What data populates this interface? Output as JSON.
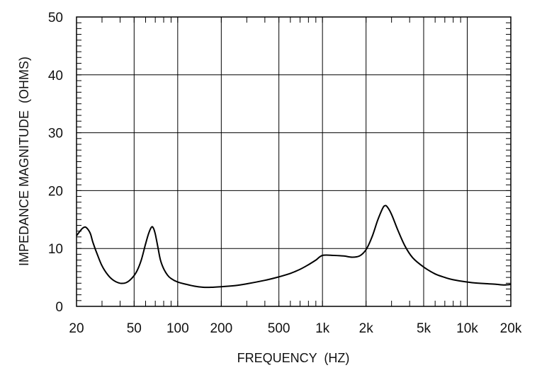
{
  "chart_data": {
    "type": "line",
    "title": "",
    "xlabel": "FREQUENCY  (HZ)",
    "ylabel": "IMPEDANCE MAGNITUDE  (OHMS)",
    "xscale": "log",
    "xlim": [
      20,
      20000
    ],
    "ylim": [
      0,
      50
    ],
    "grid": true,
    "legend": null,
    "x_ticks": [
      20,
      50,
      100,
      200,
      500,
      1000,
      2000,
      5000,
      10000,
      20000
    ],
    "x_tick_labels": [
      "20",
      "50",
      "100",
      "200",
      "500",
      "1k",
      "2k",
      "5k",
      "10k",
      "20k"
    ],
    "y_ticks": [
      0,
      10,
      20,
      30,
      40,
      50
    ],
    "y_tick_labels": [
      "0",
      "10",
      "20",
      "30",
      "40",
      "50"
    ],
    "series": [
      {
        "name": "Impedance magnitude",
        "color": "#000000",
        "x": [
          20,
          21,
          22,
          23,
          24,
          25,
          26,
          28,
          30,
          33,
          36,
          40,
          44,
          48,
          52,
          56,
          60,
          63,
          66,
          68,
          70,
          73,
          76,
          80,
          85,
          90,
          100,
          115,
          130,
          150,
          170,
          200,
          250,
          300,
          400,
          500,
          600,
          700,
          800,
          900,
          1000,
          1200,
          1400,
          1600,
          1800,
          2000,
          2200,
          2400,
          2600,
          2700,
          2800,
          3000,
          3300,
          3700,
          4200,
          5000,
          6000,
          7000,
          8000,
          10000,
          12000,
          14000,
          16000,
          18000,
          20000
        ],
        "y": [
          12.2,
          12.9,
          13.5,
          13.7,
          13.3,
          12.5,
          11.0,
          8.8,
          7.0,
          5.4,
          4.5,
          4.0,
          4.1,
          4.8,
          6.0,
          8.0,
          10.8,
          12.6,
          13.7,
          13.5,
          12.5,
          10.2,
          8.0,
          6.5,
          5.4,
          4.8,
          4.2,
          3.8,
          3.5,
          3.3,
          3.3,
          3.4,
          3.6,
          3.9,
          4.5,
          5.1,
          5.7,
          6.4,
          7.2,
          8.0,
          8.8,
          8.8,
          8.7,
          8.5,
          8.7,
          9.8,
          12.0,
          14.8,
          16.9,
          17.4,
          17.2,
          15.9,
          13.3,
          10.5,
          8.4,
          6.8,
          5.6,
          5.0,
          4.6,
          4.2,
          4.0,
          3.9,
          3.8,
          3.7,
          3.8
        ]
      }
    ]
  }
}
